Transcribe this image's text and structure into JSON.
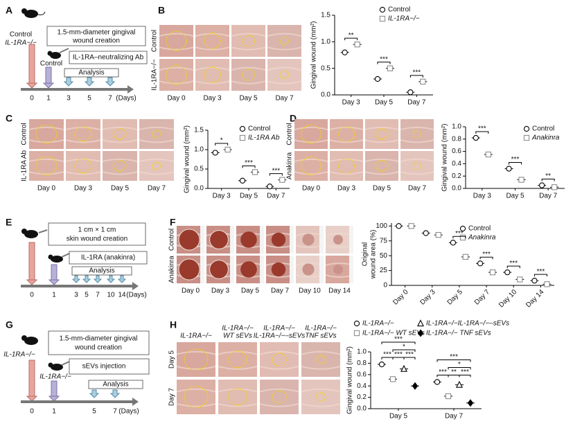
{
  "panel_labels": [
    "A",
    "B",
    "C",
    "D",
    "E",
    "F",
    "G",
    "H"
  ],
  "schematics": {
    "A": {
      "mouse_labels": [
        "Control",
        "IL-1RA−/−"
      ],
      "step_1": [
        "1.5-mm-diameter gingival",
        "wound creation"
      ],
      "mouse_label_2": "Control",
      "step_2": "IL-1RA–neutralizing Ab",
      "analysis": "Analysis",
      "days": [
        "0",
        "1",
        "3",
        "5",
        "7"
      ],
      "days_unit": "(Days)"
    },
    "E": {
      "step_1": [
        "1 cm × 1 cm",
        "skin wound creation"
      ],
      "step_2": "IL-1RA (anakinra)",
      "analysis": "Analysis",
      "days": [
        "0",
        "1",
        "3",
        "5",
        "7",
        "10",
        "14"
      ],
      "days_unit": "(Days)"
    },
    "G": {
      "mouse_label": "IL-1RA−/−",
      "step_1": [
        "1.5-mm-diameter gingival",
        "wound creation"
      ],
      "mouse_label_2": "IL-1RA−/−",
      "step_2": "sEVs injection",
      "analysis": "Analysis",
      "days": [
        "0",
        "1",
        "5",
        "7"
      ],
      "days_unit": "(Days)"
    }
  },
  "photo_panels": {
    "B": {
      "rows": [
        "Control",
        "IL-1RA−/−"
      ],
      "columns": [
        "Day 0",
        "Day 3",
        "Day 5",
        "Day 7"
      ]
    },
    "C": {
      "rows": [
        "Control",
        "IL-1RA Ab"
      ],
      "columns": [
        "Day 0",
        "Day 3",
        "Day 5",
        "Day 7"
      ]
    },
    "D": {
      "rows": [
        "Control",
        "Anakinra"
      ],
      "columns": [
        "Day 0",
        "Day 3",
        "Day 5",
        "Day 7"
      ]
    },
    "F": {
      "rows": [
        "Control",
        "Anakinra"
      ],
      "columns": [
        "Day 0",
        "Day 3",
        "Day 5",
        "Day 7",
        "Day 10",
        "Day 14"
      ]
    },
    "H": {
      "rows": [
        "Day 5",
        "Day 7"
      ],
      "columns": [
        [
          "IL-1RA−/−"
        ],
        [
          "IL-1RA−/−",
          "WT sEVs"
        ],
        [
          "IL-1RA−/−",
          "IL-1RA−/−–sEVs"
        ],
        [
          "IL-1RA−/−",
          "TNF sEVs"
        ]
      ]
    }
  },
  "chart_data": [
    {
      "type": "dot",
      "ylabel": "Gingival wound (mm²)",
      "categories": [
        "Day 3",
        "Day 5",
        "Day 7"
      ],
      "series": [
        {
          "name": "Control",
          "color": "#000000",
          "marker": "circle",
          "filled": false,
          "values": [
            0.8,
            0.3,
            0.05
          ]
        },
        {
          "name": "IL-1RA−/−",
          "color": "#8c8c8c",
          "marker": "square",
          "filled": false,
          "values": [
            0.95,
            0.5,
            0.25
          ]
        }
      ],
      "ylim": [
        0,
        1.5
      ],
      "yticks": [
        {
          "value": 0,
          "label": "0.0"
        },
        0.5,
        {
          "value": 1,
          "label": "1.0"
        },
        1.5
      ],
      "annotations": [
        "**",
        "***",
        "***"
      ]
    },
    {
      "type": "dot",
      "ylabel": "Gingival wound (mm²)",
      "categories": [
        "Day 3",
        "Day 5",
        "Day 7"
      ],
      "series": [
        {
          "name": "Control",
          "color": "#000000",
          "marker": "circle",
          "filled": false,
          "values": [
            0.92,
            0.2,
            0.05
          ]
        },
        {
          "name": "IL-1RA Ab",
          "color": "#8c8c8c",
          "marker": "square",
          "filled": false,
          "values": [
            1.0,
            0.42,
            0.22
          ]
        }
      ],
      "ylim": [
        0,
        1.5
      ],
      "yticks": [
        {
          "value": 0,
          "label": "0.0"
        },
        0.5,
        {
          "value": 1,
          "label": "1.0"
        },
        1.5
      ],
      "annotations": [
        "*",
        "***",
        "***"
      ]
    },
    {
      "type": "dot",
      "ylabel": "Gingival wound (mm²)",
      "categories": [
        "Day 3",
        "Day 5",
        "Day 7"
      ],
      "series": [
        {
          "name": "Control",
          "color": "#000000",
          "marker": "circle",
          "filled": false,
          "values": [
            0.82,
            0.32,
            0.05
          ]
        },
        {
          "name": "Anakinra",
          "color": "#8c8c8c",
          "marker": "square",
          "filled": false,
          "values": [
            0.55,
            0.14,
            0.02
          ]
        }
      ],
      "ylim": [
        0,
        1
      ],
      "yticks": [
        {
          "value": 0,
          "label": "0.0"
        },
        0.2,
        0.4,
        0.6,
        0.8,
        {
          "value": 1,
          "label": "1.0"
        }
      ],
      "annotations": [
        "***",
        "***",
        "**"
      ]
    },
    {
      "type": "dot",
      "ylabel": [
        "Original",
        "wound area (%)"
      ],
      "categories": [
        "Day 0",
        "Day 3",
        "Day 5",
        "Day 7",
        "Day 10",
        "Day 14"
      ],
      "series": [
        {
          "name": "Control",
          "color": "#000000",
          "marker": "circle",
          "filled": false,
          "values": [
            100,
            88,
            72,
            37,
            22,
            8
          ]
        },
        {
          "name": "Anakinra",
          "color": "#8c8c8c",
          "marker": "square",
          "filled": false,
          "values": [
            100,
            85,
            48,
            22,
            10,
            2
          ]
        }
      ],
      "ylim": [
        0,
        105
      ],
      "yticks": [
        0,
        25,
        50,
        75,
        100
      ],
      "annotations": [
        null,
        null,
        "***",
        "***",
        "***",
        "***"
      ]
    },
    {
      "type": "dot",
      "ylabel": "Gingival wound (mm²)",
      "categories": [
        "Day 5",
        "Day 7"
      ],
      "series": [
        {
          "name": "IL-1RA−/−",
          "color": "#000000",
          "marker": "circle",
          "filled": false,
          "values": [
            0.78,
            0.47
          ]
        },
        {
          "name": "IL-1RA−/− WT sEVs",
          "color": "#8c8c8c",
          "marker": "square",
          "filled": false,
          "values": [
            0.52,
            0.22
          ]
        },
        {
          "name": "IL-1RA−/−IL-1RA−/−–sEVs",
          "color": "#000000",
          "marker": "triangle",
          "filled": false,
          "values": [
            0.7,
            0.42
          ]
        },
        {
          "name": "IL-1RA−/− TNF sEVs",
          "color": "#000000",
          "marker": "diamond",
          "filled": true,
          "values": [
            0.4,
            0.1
          ]
        }
      ],
      "ylim": [
        0,
        1
      ],
      "yticks": [
        {
          "value": 0,
          "label": "0.0"
        },
        0.2,
        0.4,
        0.6,
        0.8,
        {
          "value": 1,
          "label": "1.0"
        }
      ],
      "annotations": [
        "***",
        "***",
        "***",
        "*",
        "***",
        "***",
        "**",
        "***",
        "*",
        "***"
      ]
    }
  ]
}
